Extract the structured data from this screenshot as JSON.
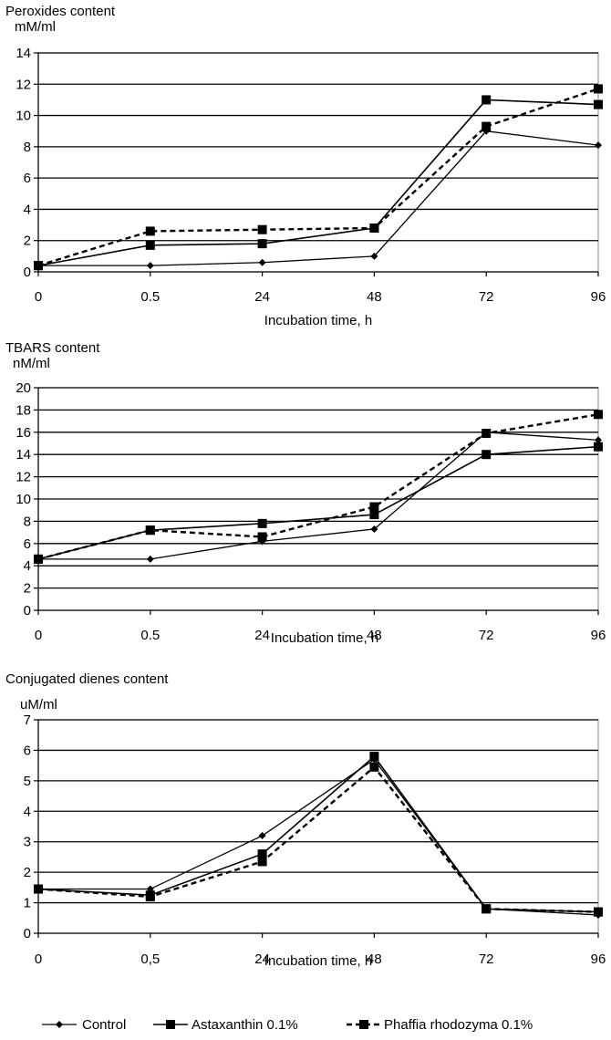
{
  "legend": {
    "items": [
      {
        "label": "Control",
        "marker": "diamond",
        "dash": "solid",
        "width": 1.3
      },
      {
        "label": "Astaxanthin  0.1%",
        "marker": "square",
        "dash": "solid",
        "width": 1.6
      },
      {
        "label": "Phaffia rhodozyma 0.1%",
        "marker": "square",
        "dash": "dashed",
        "width": 2.4
      }
    ]
  },
  "chart_data": [
    {
      "type": "line",
      "title": "Peroxides content",
      "ylabel": "mM/ml",
      "xlabel": "Incubation time, h",
      "categories": [
        "0",
        "0.5",
        "24",
        "48",
        "72",
        "96"
      ],
      "ylim": [
        0,
        14
      ],
      "yticks": [
        0,
        2,
        4,
        6,
        8,
        10,
        12,
        14
      ],
      "grid": true,
      "series": [
        {
          "name": "Control",
          "values": [
            0.4,
            0.4,
            0.6,
            1.0,
            9.0,
            8.1
          ]
        },
        {
          "name": "Astaxanthin  0.1%",
          "values": [
            0.4,
            1.7,
            1.8,
            2.8,
            11.0,
            10.7
          ]
        },
        {
          "name": "Phaffia rhodozyma 0.1%",
          "values": [
            0.4,
            2.6,
            2.7,
            2.8,
            9.3,
            11.7
          ]
        }
      ]
    },
    {
      "type": "line",
      "title": "TBARS content",
      "ylabel": "nM/ml",
      "xlabel": "Incubation time, h",
      "categories": [
        "0",
        "0.5",
        "24",
        "48",
        "72",
        "96"
      ],
      "ylim": [
        0,
        20
      ],
      "yticks": [
        0,
        2,
        4,
        6,
        8,
        10,
        12,
        14,
        16,
        18,
        20
      ],
      "grid": true,
      "series": [
        {
          "name": "Control",
          "values": [
            4.6,
            4.6,
            6.2,
            7.3,
            16.0,
            15.3
          ]
        },
        {
          "name": "Astaxanthin  0.1%",
          "values": [
            4.6,
            7.2,
            7.8,
            8.6,
            14.0,
            14.7
          ]
        },
        {
          "name": "Phaffia rhodozyma 0.1%",
          "values": [
            4.6,
            7.2,
            6.6,
            9.3,
            15.9,
            17.6
          ]
        }
      ]
    },
    {
      "type": "line",
      "title": "Conjugated dienes content",
      "ylabel": "uM/ml",
      "xlabel": "Incubation time, h",
      "categories": [
        "0",
        "0,5",
        "24",
        "48",
        "72",
        "96"
      ],
      "ylim": [
        0,
        7
      ],
      "yticks": [
        0,
        1,
        2,
        3,
        4,
        5,
        6,
        7
      ],
      "grid": true,
      "series": [
        {
          "name": "Control",
          "values": [
            1.45,
            1.45,
            3.2,
            5.7,
            0.8,
            0.6
          ]
        },
        {
          "name": "Astaxanthin  0.1%",
          "values": [
            1.45,
            1.25,
            2.6,
            5.8,
            0.8,
            0.7
          ]
        },
        {
          "name": "Phaffia rhodozyma 0.1%",
          "values": [
            1.45,
            1.2,
            2.35,
            5.45,
            0.8,
            0.7
          ]
        }
      ]
    }
  ]
}
